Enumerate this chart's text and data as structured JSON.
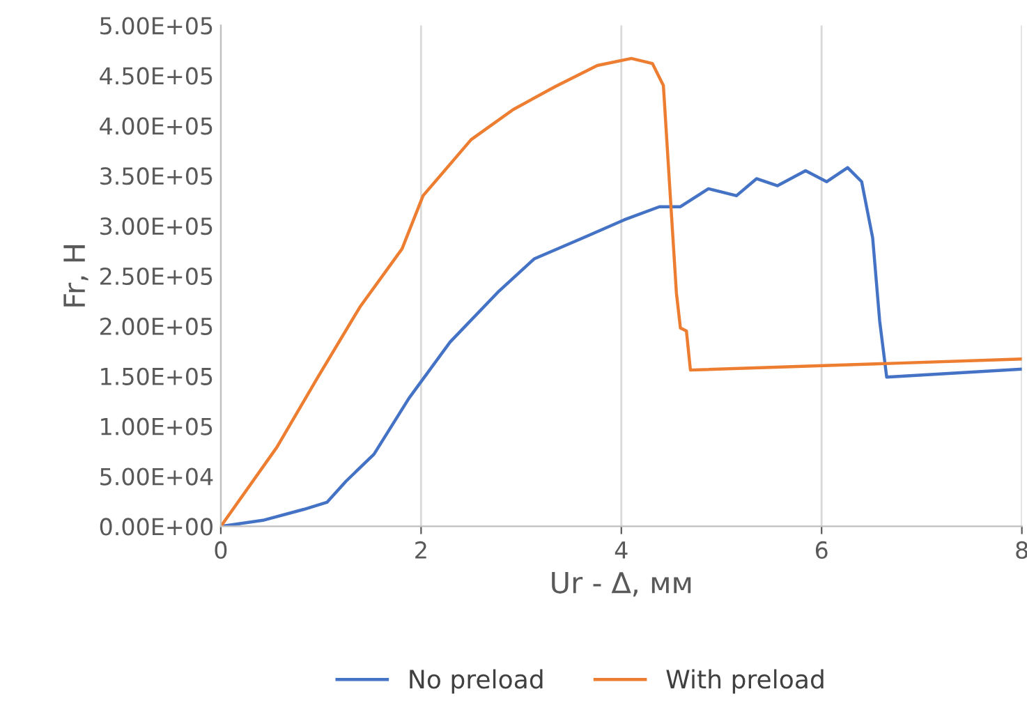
{
  "chart_data": {
    "type": "line",
    "xlabel": "Ur - ∆, мм",
    "ylabel": "Fr, H",
    "xlim": [
      0,
      8
    ],
    "xticks": [
      0,
      2,
      4,
      6,
      8
    ],
    "ylim": [
      0,
      500000
    ],
    "yticks": [
      {
        "value": 0,
        "label": "0.00E+00"
      },
      {
        "value": 50000,
        "label": "5.00E+04"
      },
      {
        "value": 100000,
        "label": "1.00E+05"
      },
      {
        "value": 150000,
        "label": "1.50E+05"
      },
      {
        "value": 200000,
        "label": "2.00E+05"
      },
      {
        "value": 250000,
        "label": "2.50E+05"
      },
      {
        "value": 300000,
        "label": "3.00E+05"
      },
      {
        "value": 350000,
        "label": "3.50E+05"
      },
      {
        "value": 400000,
        "label": "4.00E+05"
      },
      {
        "value": 450000,
        "label": "4.50E+05"
      },
      {
        "value": 500000,
        "label": "5.00E+05"
      }
    ],
    "grid": "x",
    "legend": "bottom",
    "marker": "none",
    "line_style": "solid",
    "series": [
      {
        "name": "No preload",
        "color": "#4472c4",
        "x": [
          0,
          0.42,
          0.83,
          1.06,
          1.25,
          1.53,
          1.88,
          2.29,
          2.78,
          3.13,
          3.62,
          4.03,
          4.38,
          4.59,
          4.87,
          5.15,
          5.35,
          5.56,
          5.84,
          6.05,
          6.26,
          6.4,
          6.51,
          6.58,
          6.65,
          8
        ],
        "values": [
          0,
          6000,
          17000,
          24000,
          45000,
          72000,
          128000,
          184000,
          235000,
          267000,
          288000,
          306000,
          319000,
          319000,
          337000,
          330000,
          347000,
          340000,
          355000,
          344000,
          358000,
          344000,
          288000,
          205000,
          149000,
          157000
        ]
      },
      {
        "name": "With preload",
        "color": "#ed7d31",
        "x": [
          0,
          0.56,
          0.97,
          1.39,
          1.81,
          2.02,
          2.5,
          2.92,
          3.34,
          3.76,
          4.1,
          4.31,
          4.42,
          4.48,
          4.55,
          4.59,
          4.65,
          4.69,
          8
        ],
        "values": [
          0,
          79000,
          149000,
          219000,
          277000,
          330000,
          386000,
          416000,
          439000,
          460000,
          467000,
          462000,
          440000,
          344000,
          233000,
          198000,
          195000,
          156000,
          167000
        ]
      }
    ]
  }
}
